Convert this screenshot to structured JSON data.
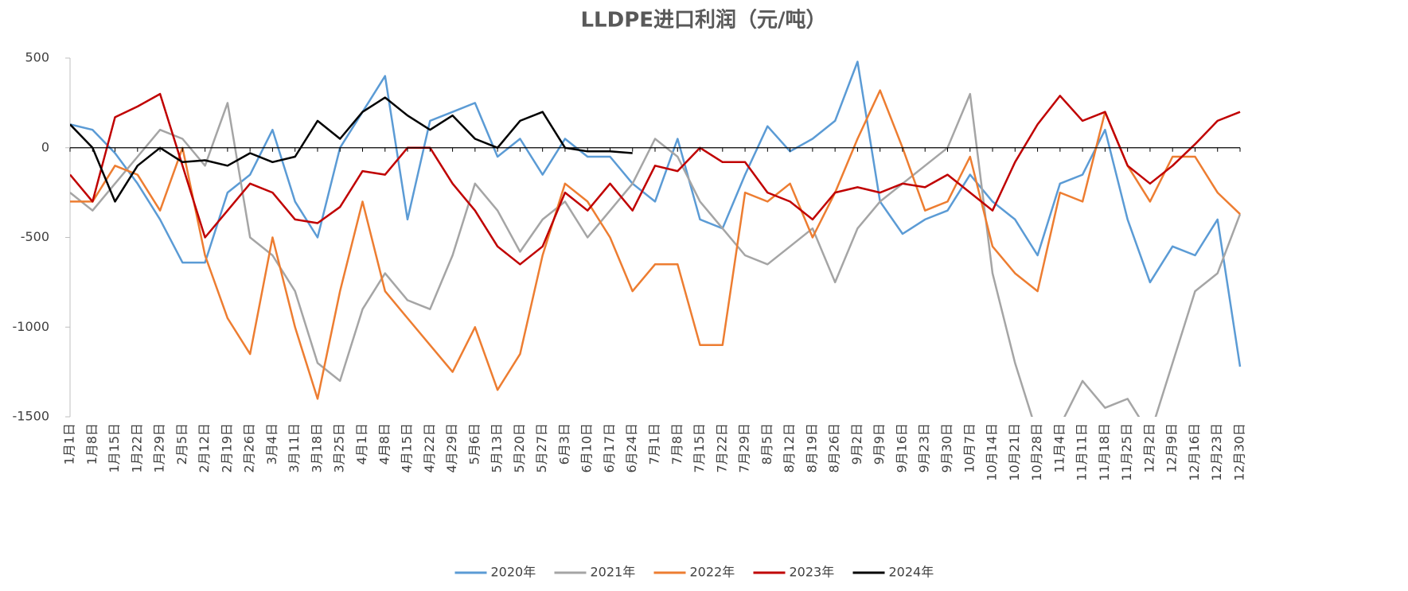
{
  "chart_data": {
    "type": "line",
    "title": "LLDPE进口利润（元/吨）",
    "categories": [
      "1月1日",
      "1月8日",
      "1月15日",
      "1月22日",
      "1月29日",
      "2月5日",
      "2月12日",
      "2月19日",
      "2月26日",
      "3月4日",
      "3月11日",
      "3月18日",
      "3月25日",
      "4月1日",
      "4月8日",
      "4月15日",
      "4月22日",
      "4月29日",
      "5月6日",
      "5月13日",
      "5月20日",
      "5月27日",
      "6月3日",
      "6月10日",
      "6月17日",
      "6月24日",
      "7月1日",
      "7月8日",
      "7月15日",
      "7月22日",
      "7月29日",
      "8月5日",
      "8月12日",
      "8月19日",
      "8月26日",
      "9月2日",
      "9月9日",
      "9月16日",
      "9月23日",
      "9月30日",
      "10月7日",
      "10月14日",
      "10月21日",
      "10月28日",
      "11月4日",
      "11月11日",
      "11月18日",
      "11月25日",
      "12月2日",
      "12月9日",
      "12月16日",
      "12月23日",
      "12月30日"
    ],
    "series": [
      {
        "name": "2020年",
        "color": "#5b9bd5",
        "values": [
          130,
          100,
          -30,
          -200,
          -400,
          -640,
          -640,
          -250,
          -150,
          100,
          -300,
          -500,
          0,
          200,
          400,
          -400,
          150,
          200,
          250,
          -50,
          50,
          -150,
          50,
          -50,
          -50,
          -200,
          -300,
          50,
          -400,
          -450,
          -150,
          120,
          -20,
          50,
          150,
          480,
          -300,
          -480,
          -400,
          -350,
          -150,
          -300,
          -400,
          -600,
          -200,
          -150,
          100,
          -400,
          -750,
          -550,
          -600,
          -400,
          -1220
        ]
      },
      {
        "name": "2021年",
        "color": "#a5a5a5",
        "values": [
          -250,
          -350,
          -200,
          -50,
          100,
          50,
          -100,
          250,
          -500,
          -600,
          -800,
          -1200,
          -1300,
          -900,
          -700,
          -850,
          -900,
          -600,
          -200,
          -350,
          -580,
          -400,
          -300,
          -500,
          -350,
          -200,
          50,
          -50,
          -300,
          -450,
          -600,
          -650,
          -550,
          -450,
          -750,
          -450,
          -300,
          -200,
          -100,
          0,
          300,
          -700,
          -1200,
          -1600,
          -1550,
          -1300,
          -1450,
          -1400,
          -1600,
          -1200,
          -800,
          -700,
          -370
        ]
      },
      {
        "name": "2022年",
        "color": "#ed7d31",
        "values": [
          -300,
          -300,
          -100,
          -150,
          -350,
          0,
          -600,
          -950,
          -1150,
          -500,
          -1000,
          -1400,
          -800,
          -300,
          -800,
          -950,
          -1100,
          -1250,
          -1000,
          -1350,
          -1150,
          -600,
          -200,
          -300,
          -500,
          -800,
          -650,
          -650,
          -1100,
          -1100,
          -250,
          -300,
          -200,
          -500,
          -250,
          50,
          320,
          0,
          -350,
          -300,
          -50,
          -550,
          -700,
          -800,
          -250,
          -300,
          200,
          -100,
          -300,
          -50,
          -50,
          -250,
          -370
        ]
      },
      {
        "name": "2023年",
        "color": "#c00000",
        "values": [
          -150,
          -300,
          170,
          230,
          300,
          -100,
          -500,
          -350,
          -200,
          -250,
          -400,
          -420,
          -330,
          -130,
          -150,
          0,
          0,
          -200,
          -350,
          -550,
          -650,
          -550,
          -250,
          -350,
          -200,
          -350,
          -100,
          -130,
          0,
          -80,
          -80,
          -250,
          -300,
          -400,
          -250,
          -220,
          -250,
          -200,
          -220,
          -150,
          -250,
          -350,
          -80,
          130,
          290,
          150,
          200,
          -100,
          -200,
          -100,
          20,
          150,
          200
        ]
      },
      {
        "name": "2024年",
        "color": "#000000",
        "values": [
          130,
          0,
          -300,
          -100,
          0,
          -80,
          -70,
          -100,
          -30,
          -80,
          -50,
          150,
          50,
          200,
          280,
          180,
          100,
          180,
          50,
          0,
          150,
          200,
          0,
          -20,
          -20,
          -30,
          null,
          null,
          null,
          null,
          null,
          null,
          null,
          null,
          null,
          null,
          null,
          null,
          null,
          null,
          null,
          null,
          null,
          null,
          null,
          null,
          null,
          null,
          null,
          null,
          null,
          null,
          null
        ]
      }
    ],
    "ylim": [
      -1500,
      500
    ],
    "yticks": [
      -1500,
      -1000,
      -500,
      0,
      500
    ],
    "grid": false,
    "legend": "bottom"
  }
}
